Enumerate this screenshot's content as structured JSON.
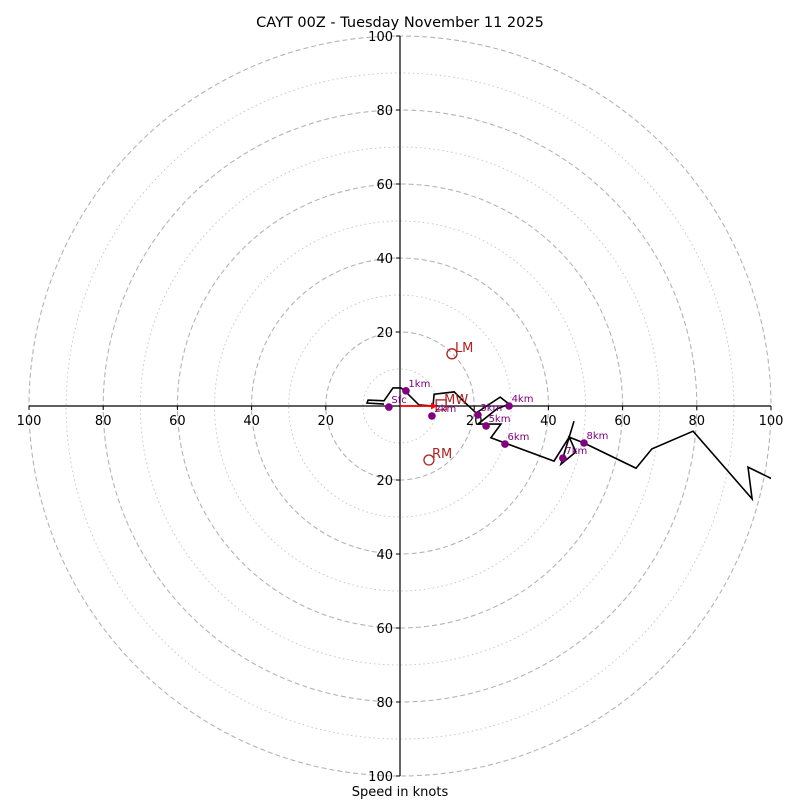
{
  "chart_data": {
    "type": "line",
    "subtype": "hodograph",
    "title": "CAYT 00Z - Tuesday November 11 2025",
    "xlabel": "Speed in knots",
    "ylabel": "",
    "xlim": [
      -100,
      100
    ],
    "ylim": [
      -100,
      100
    ],
    "ring_major": [
      20,
      40,
      60,
      80,
      100
    ],
    "ring_minor": [
      10,
      30,
      50,
      70,
      90
    ],
    "tick_labels": {
      "top": [
        "20",
        "40",
        "60",
        "80",
        "100"
      ],
      "bottom": [
        "20",
        "40",
        "60",
        "80",
        "100"
      ],
      "left": [
        "20",
        "40",
        "60",
        "80",
        "100"
      ],
      "right": [
        "20",
        "40",
        "60",
        "80",
        "100"
      ]
    },
    "grid": true,
    "hodograph": {
      "name": "wind profile",
      "color": "#000000",
      "u": [
        -4.3,
        -8.9,
        -8.6,
        -4.3,
        -1.9,
        0.3,
        1.9,
        5.1,
        8.9,
        9.2,
        14.6,
        17.0,
        20.5,
        27.0,
        29.4,
        26.1,
        21.0,
        27.2,
        24.5,
        41.5,
        45.6,
        46.9,
        45.6,
        43.4,
        47.4,
        45.6,
        49.6,
        63.6,
        67.9,
        79.0,
        94.9,
        93.8,
        100.3
      ],
      "v": [
        0.5,
        0.8,
        1.6,
        1.4,
        4.9,
        4.9,
        3.5,
        0.3,
        0.0,
        3.2,
        3.8,
        1.4,
        -1.9,
        2.4,
        0.5,
        -0.8,
        -4.9,
        -4.9,
        -8.6,
        -14.9,
        -8.4,
        -4.1,
        -8.4,
        -15.7,
        -12.4,
        -8.4,
        -10.0,
        -16.8,
        -11.6,
        -6.8,
        -25.1,
        -16.5,
        -19.7
      ]
    },
    "height_markers": {
      "color": "#800080",
      "points": [
        {
          "label": "Sfc",
          "u": -3.0,
          "v": -0.3
        },
        {
          "label": "1km",
          "u": 1.6,
          "v": 4.1
        },
        {
          "label": "2km",
          "u": 8.6,
          "v": -2.7
        },
        {
          "label": "3km",
          "u": 21.0,
          "v": -2.4
        },
        {
          "label": "4km",
          "u": 29.4,
          "v": 0.0
        },
        {
          "label": "5km",
          "u": 23.2,
          "v": -5.4
        },
        {
          "label": "6km",
          "u": 28.3,
          "v": -10.3
        },
        {
          "label": "7km",
          "u": 43.9,
          "v": -14.1
        },
        {
          "label": "8km",
          "u": 49.6,
          "v": -10.0
        }
      ]
    },
    "storm_motion": {
      "color": "#b22222",
      "arrow_color": "#ff0000",
      "left_mover": {
        "label": "LM",
        "u": 14.0,
        "v": 14.1
      },
      "right_mover": {
        "label": "RM",
        "u": 7.8,
        "v": -14.6
      },
      "mean_wind": {
        "label": "MW",
        "u": 11.1,
        "v": 0.3
      },
      "arrow": {
        "u": 10.0,
        "v": 0.0
      }
    }
  }
}
